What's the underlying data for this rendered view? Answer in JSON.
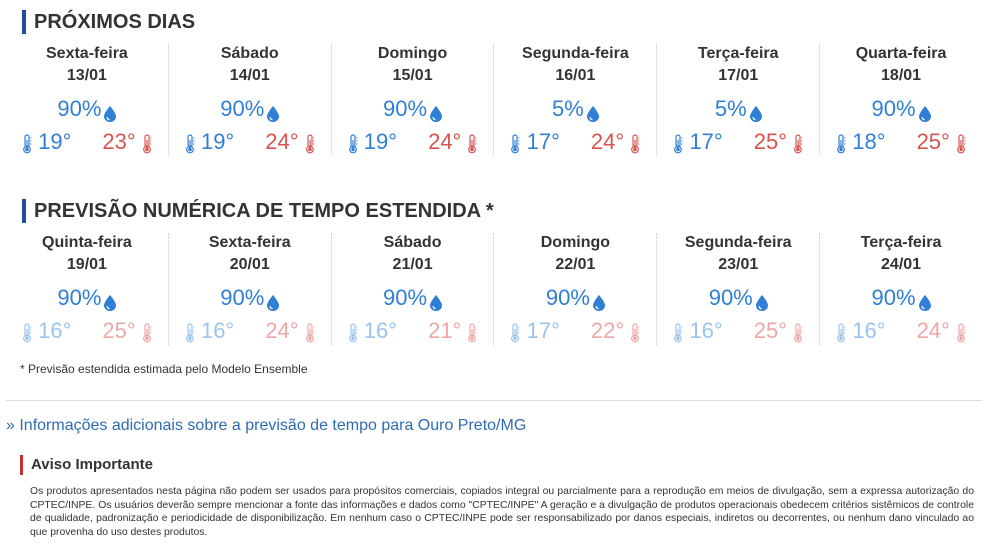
{
  "proximos": {
    "title": "PRÓXIMOS DIAS",
    "days": [
      {
        "name": "Sexta-feira",
        "date": "13/01",
        "rain": "90%",
        "min": "19°",
        "max": "23°"
      },
      {
        "name": "Sábado",
        "date": "14/01",
        "rain": "90%",
        "min": "19°",
        "max": "24°"
      },
      {
        "name": "Domingo",
        "date": "15/01",
        "rain": "90%",
        "min": "19°",
        "max": "24°"
      },
      {
        "name": "Segunda-feira",
        "date": "16/01",
        "rain": "5%",
        "min": "17°",
        "max": "24°"
      },
      {
        "name": "Terça-feira",
        "date": "17/01",
        "rain": "5%",
        "min": "17°",
        "max": "25°"
      },
      {
        "name": "Quarta-feira",
        "date": "18/01",
        "rain": "90%",
        "min": "18°",
        "max": "25°"
      }
    ]
  },
  "estendida": {
    "title": "PREVISÃO NUMÉRICA DE TEMPO ESTENDIDA *",
    "days": [
      {
        "name": "Quinta-feira",
        "date": "19/01",
        "rain": "90%",
        "min": "16°",
        "max": "25°"
      },
      {
        "name": "Sexta-feira",
        "date": "20/01",
        "rain": "90%",
        "min": "16°",
        "max": "24°"
      },
      {
        "name": "Sábado",
        "date": "21/01",
        "rain": "90%",
        "min": "16°",
        "max": "21°"
      },
      {
        "name": "Domingo",
        "date": "22/01",
        "rain": "90%",
        "min": "17°",
        "max": "22°"
      },
      {
        "name": "Segunda-feira",
        "date": "23/01",
        "rain": "90%",
        "min": "16°",
        "max": "25°"
      },
      {
        "name": "Terça-feira",
        "date": "24/01",
        "rain": "90%",
        "min": "16°",
        "max": "24°"
      }
    ],
    "note": "* Previsão estendida estimada pelo Modelo Ensemble"
  },
  "more_link": "» Informações adicionais sobre a previsão de tempo para Ouro Preto/MG",
  "aviso": {
    "title": "Aviso Importante",
    "text": "Os produtos apresentados nesta página não podem ser usados para propósitos comerciais, copiados integral ou parcialmente para a reprodução em meios de divulgação, sem a expressa autorização do CPTEC/INPE. Os usuários deverão sempre mencionar a fonte das informações e dados como \"CPTEC/INPE\" A geração e a divulgação de produtos operacionais obedecem critérios sistêmicos de controle de qualidade, padronização e periodicidade de disponibilização. Em nenhum caso o CPTEC/INPE pode ser responsabilizado por danos especiais, indiretos ou decorrentes, ou nenhum dano vinculado ao que provenha do uso destes produtos."
  },
  "colors": {
    "accent": "#1f4e9c",
    "rain": "#2f7fd6",
    "min": "#2f7fd6",
    "max": "#d9534f",
    "warn": "#c9302c"
  },
  "icons": {
    "rain": "water-drop-icon",
    "min": "thermometer-cold-icon",
    "max": "thermometer-hot-icon"
  }
}
